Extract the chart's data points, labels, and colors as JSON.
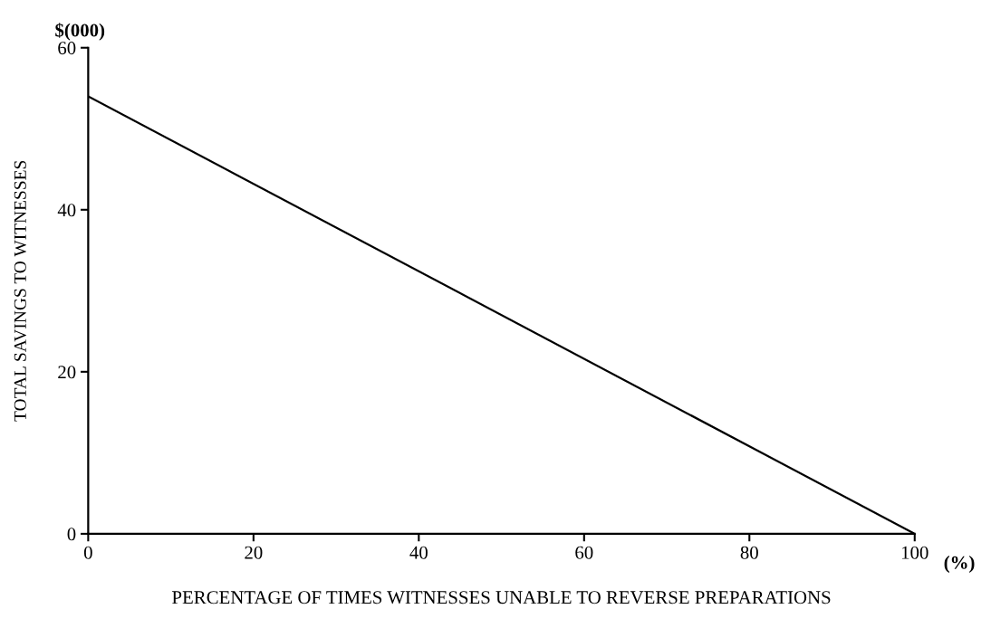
{
  "chart_data": {
    "type": "line",
    "xlabel": "PERCENTAGE OF TIMES WITNESSES UNABLE TO REVERSE PREPARATIONS",
    "ylabel": "TOTAL SAVINGS TO WITNESSES",
    "annotations": [
      "$(000)",
      "(%)"
    ],
    "x": [
      0,
      100
    ],
    "series": [
      {
        "color": "#000000",
        "values": [
          54,
          0
        ]
      }
    ],
    "xlim": [
      0,
      100
    ],
    "ylim": [
      0,
      60
    ],
    "xticks": [
      0,
      20,
      40,
      60,
      80,
      100
    ],
    "yticks": [
      0,
      20,
      40,
      60
    ],
    "grid": false,
    "legend": false,
    "marker": "none",
    "line_style": "solid"
  }
}
